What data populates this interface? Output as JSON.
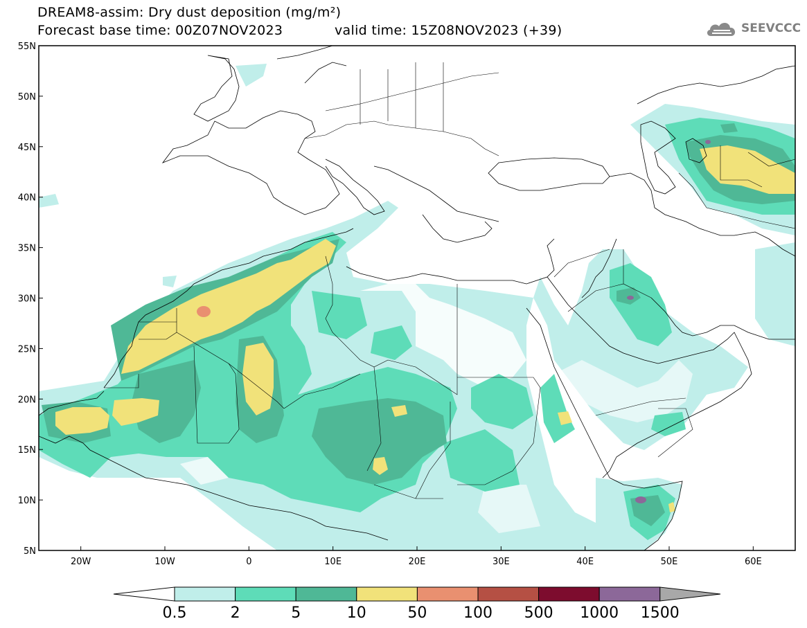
{
  "title": {
    "line1": "DREAM8-assim: Dry dust deposition (mg/m²)",
    "line2": "Forecast base time: 00Z07NOV2023",
    "valid": "valid time: 15Z08NOV2023 (+39)"
  },
  "logo": {
    "text": "SEEVCCC",
    "icon": "cloud-logo-icon"
  },
  "map": {
    "projection": "lat-lon",
    "extent": {
      "lon": [
        -25,
        65
      ],
      "lat": [
        5,
        55
      ]
    },
    "lat_ticks": [
      {
        "value": 55,
        "label": "55N"
      },
      {
        "value": 50,
        "label": "50N"
      },
      {
        "value": 45,
        "label": "45N"
      },
      {
        "value": 40,
        "label": "40N"
      },
      {
        "value": 35,
        "label": "35N"
      },
      {
        "value": 30,
        "label": "30N"
      },
      {
        "value": 25,
        "label": "25N"
      },
      {
        "value": 20,
        "label": "20N"
      },
      {
        "value": 15,
        "label": "15N"
      },
      {
        "value": 10,
        "label": "10N"
      },
      {
        "value": 5,
        "label": "5N"
      }
    ],
    "lon_ticks": [
      {
        "value": -20,
        "label": "20W"
      },
      {
        "value": -10,
        "label": "10W"
      },
      {
        "value": 0,
        "label": "0"
      },
      {
        "value": 10,
        "label": "10E"
      },
      {
        "value": 20,
        "label": "20E"
      },
      {
        "value": 30,
        "label": "30E"
      },
      {
        "value": 40,
        "label": "40E"
      },
      {
        "value": 50,
        "label": "50E"
      },
      {
        "value": 60,
        "label": "60E"
      }
    ]
  },
  "colorbar": {
    "labels": [
      "0.5",
      "2",
      "5",
      "10",
      "50",
      "100",
      "500",
      "1000",
      "1500"
    ],
    "colors": [
      "#ffffff",
      "#c0eeea",
      "#5edcb8",
      "#4fb896",
      "#f1e27a",
      "#e99070",
      "#b55044",
      "#7d0c2e",
      "#8c6899",
      "#a8a8a8"
    ]
  }
}
